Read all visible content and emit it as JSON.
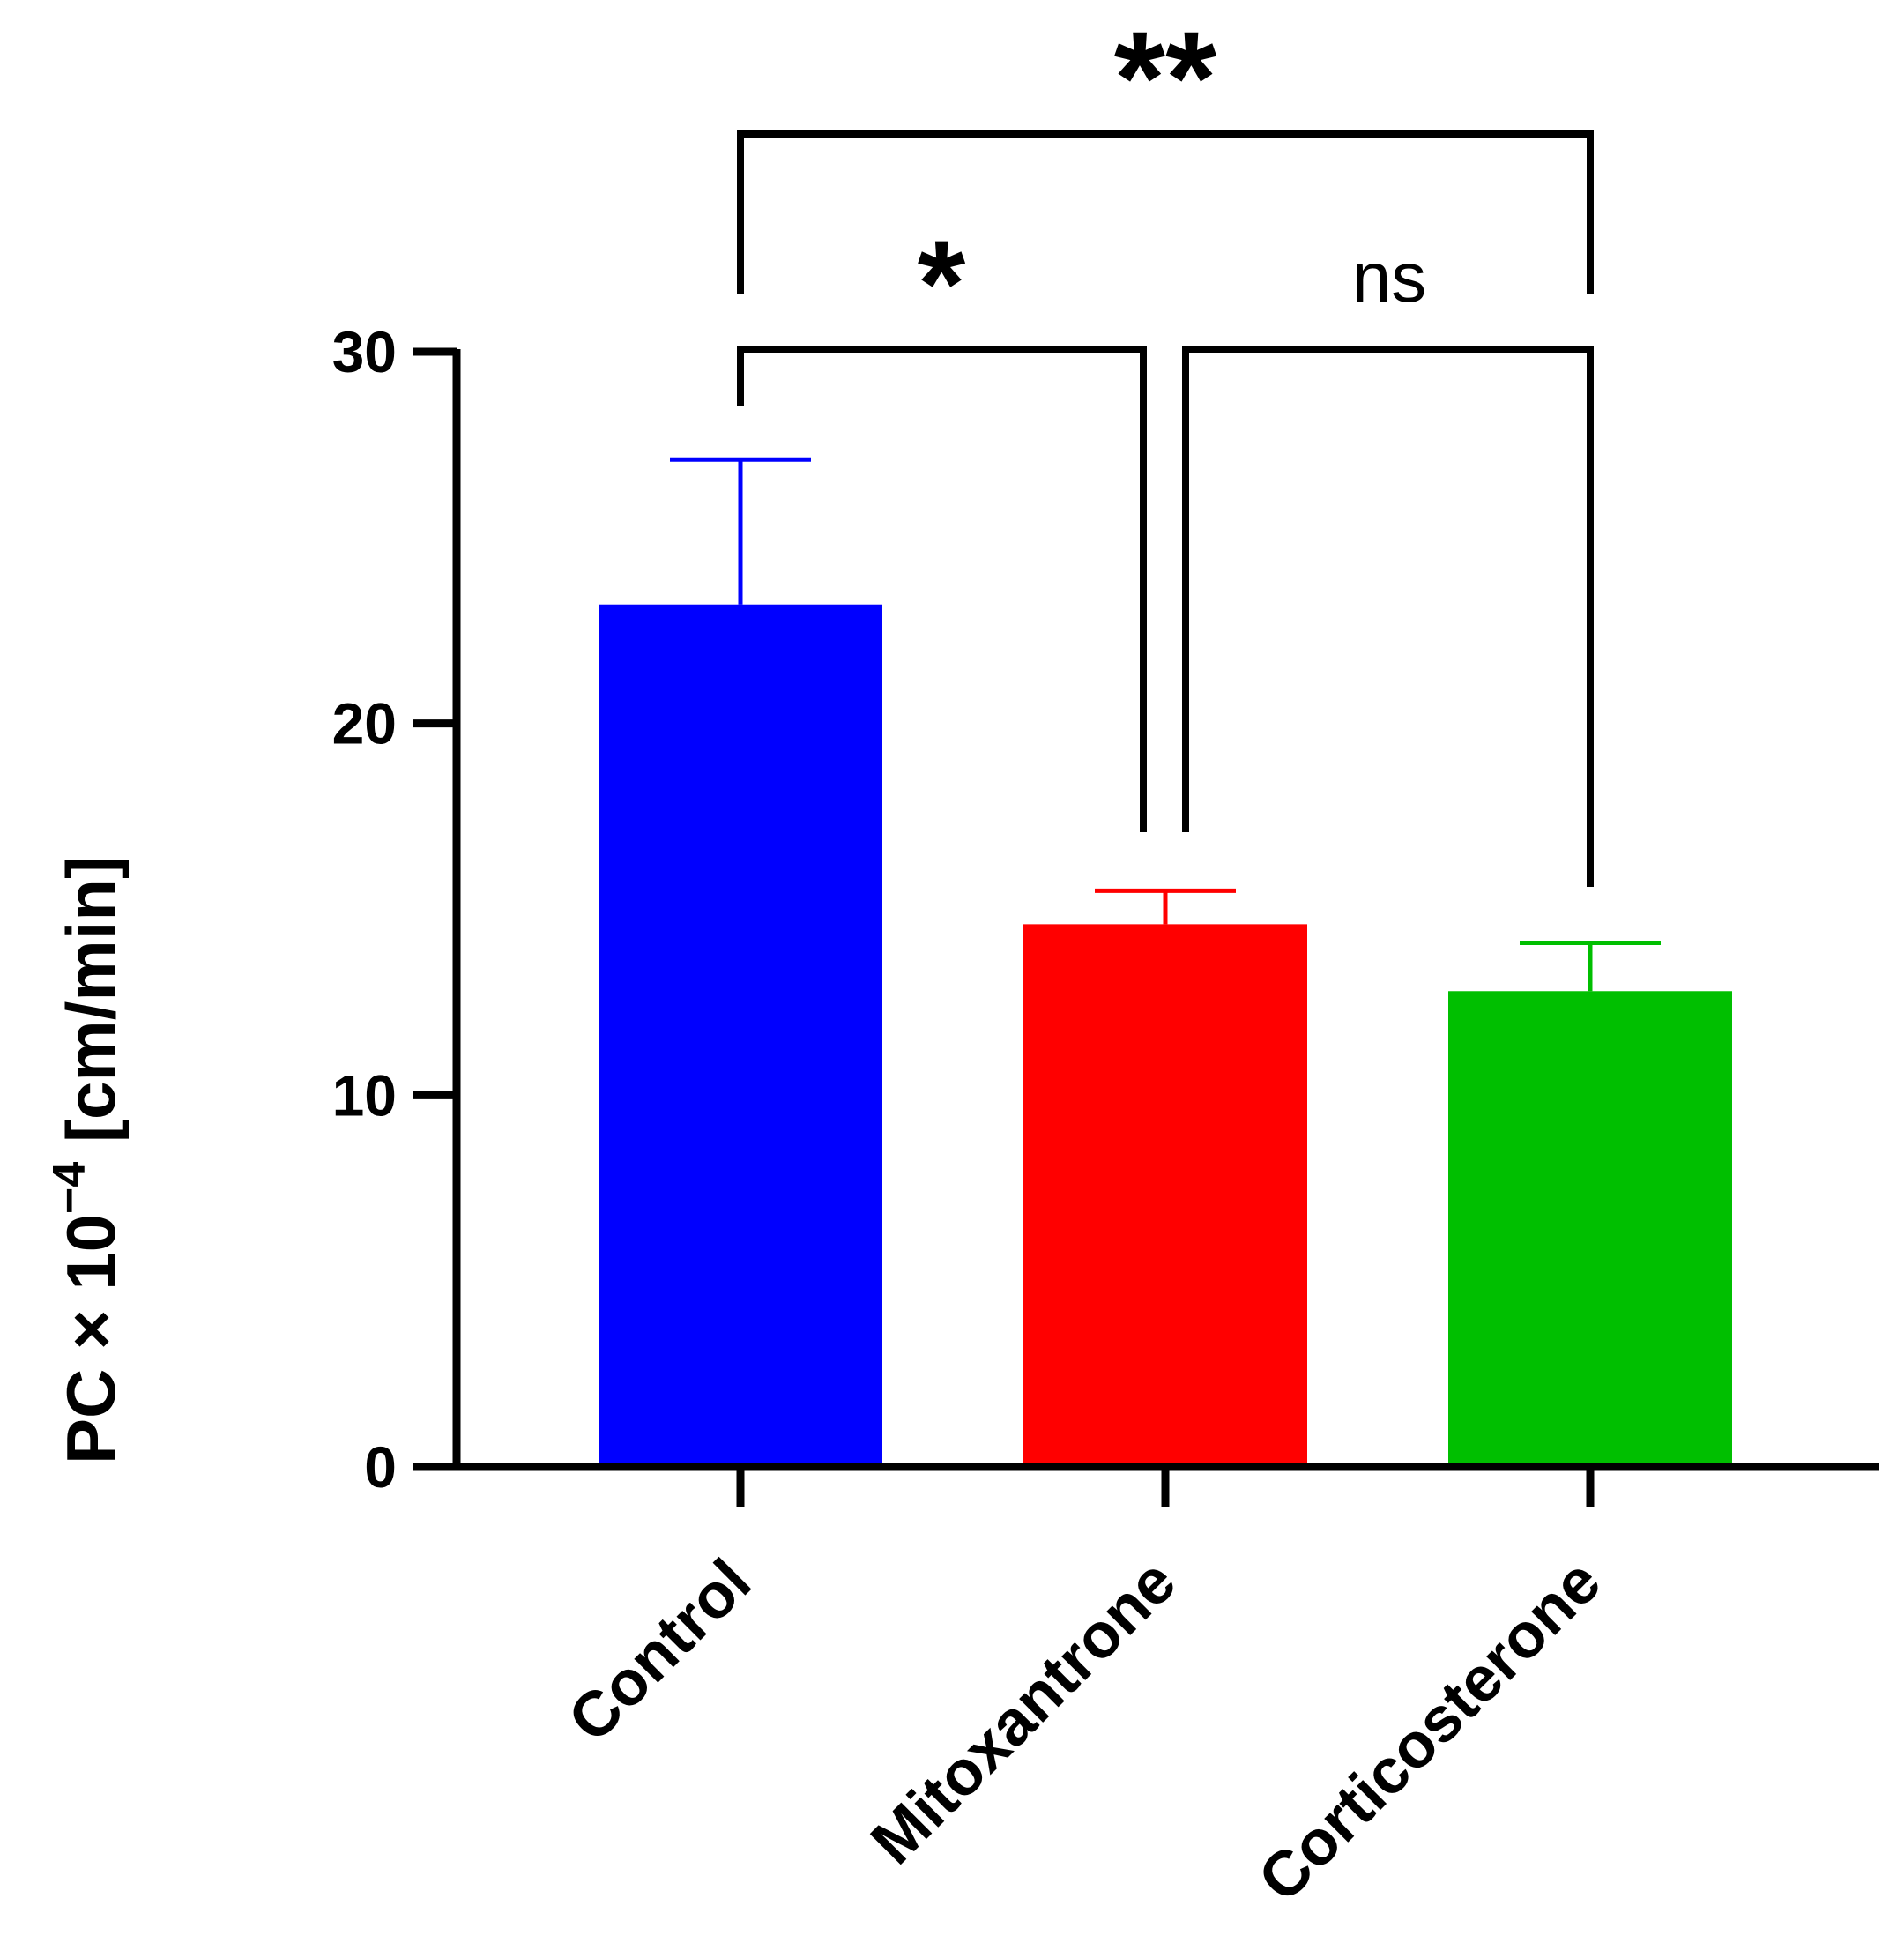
{
  "chart_data": {
    "type": "bar",
    "title": "",
    "xlabel": "",
    "ylabel": {
      "base": "PC × 10",
      "exponent": "−4",
      "unit": " [cm/min]"
    },
    "ylim": [
      0,
      30
    ],
    "yticks": [
      {
        "value": 0,
        "label": "0"
      },
      {
        "value": 10,
        "label": "10"
      },
      {
        "value": 20,
        "label": "20"
      },
      {
        "value": 30,
        "label": "30"
      }
    ],
    "categories": [
      "Control",
      "Mitoxantrone",
      "Corticosterone"
    ],
    "values": [
      23.2,
      14.6,
      12.8
    ],
    "errors": [
      3.9,
      0.9,
      1.3
    ],
    "colors": [
      "#0000ff",
      "#ff0000",
      "#00bf00"
    ],
    "significance": [
      {
        "from": 0,
        "to": 2,
        "label": "**",
        "level": "top"
      },
      {
        "from": 0,
        "to": 1,
        "label": "*",
        "level": "lower"
      },
      {
        "from": 1,
        "to": 2,
        "label": "ns",
        "level": "lower"
      }
    ]
  }
}
